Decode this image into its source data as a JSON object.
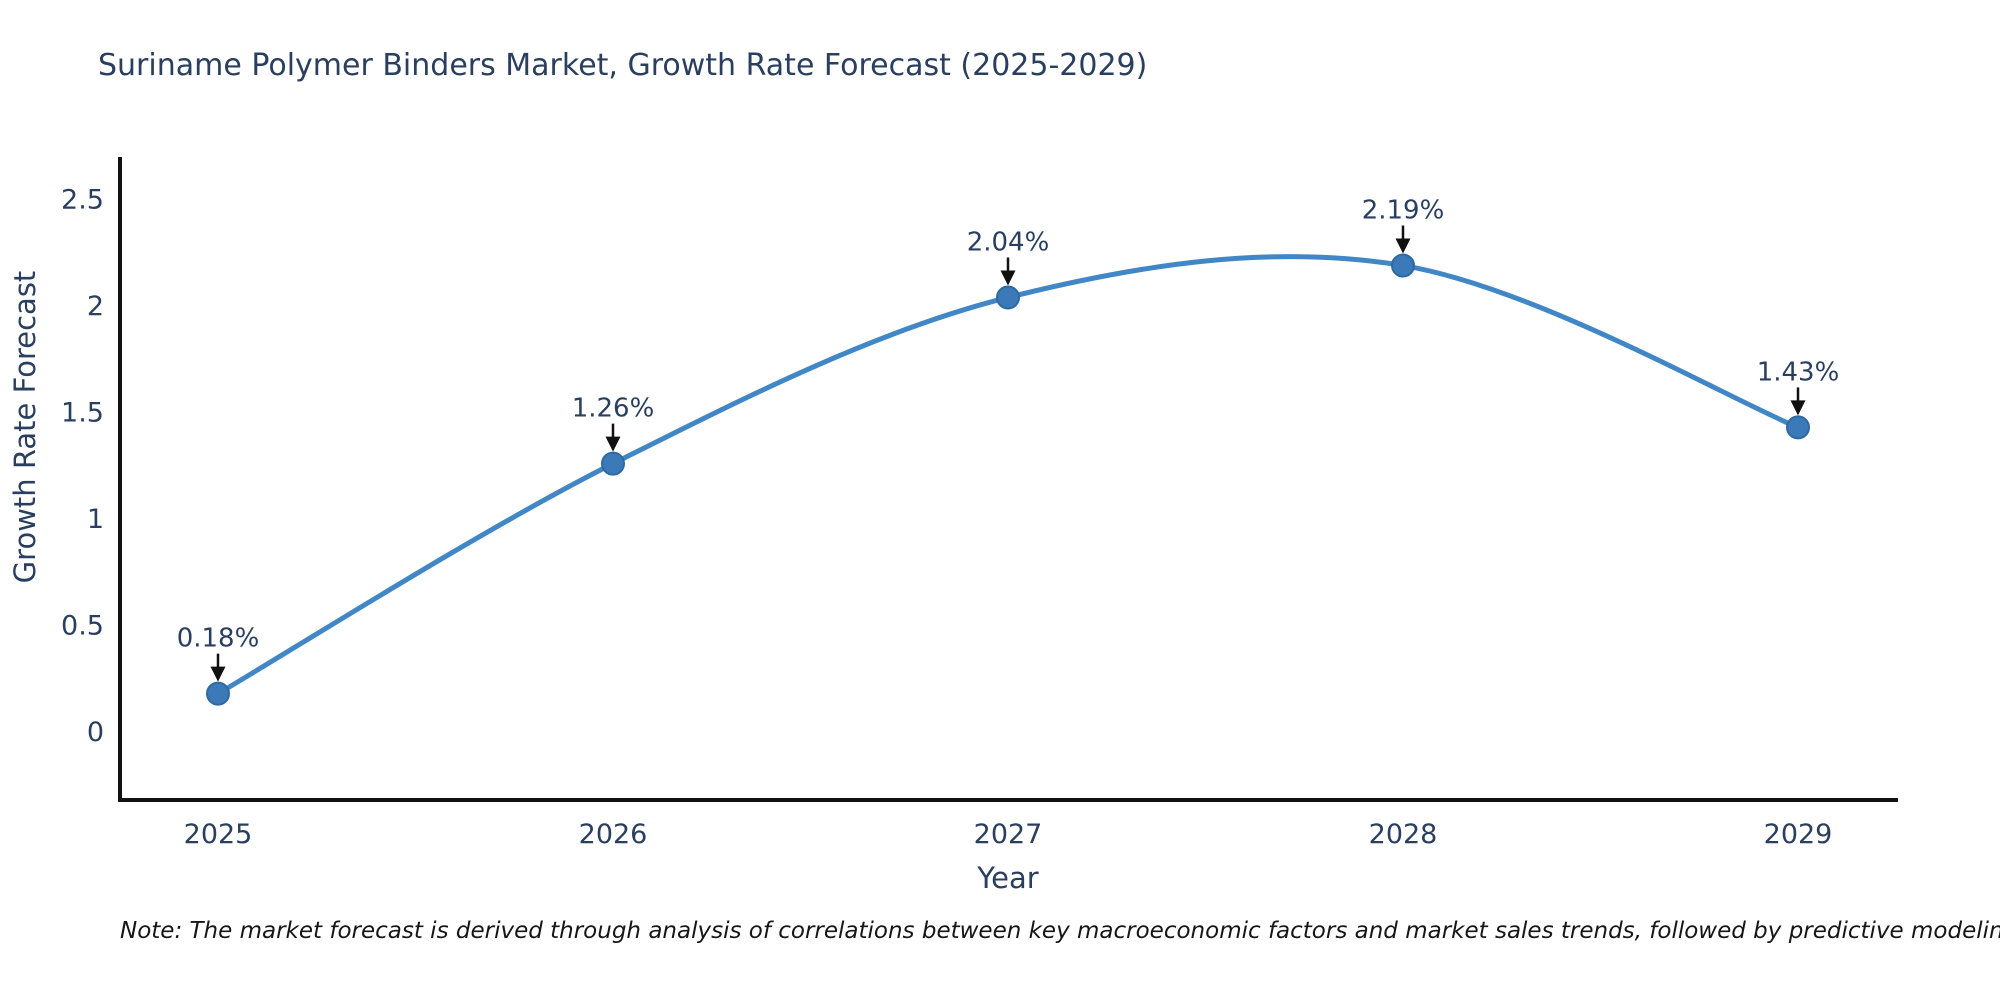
{
  "title": "Suriname Polymer Binders Market, Growth Rate Forecast (2025-2029)",
  "note": "Note: The market forecast is derived through analysis of correlations between key macroeconomic factors and market sales trends, followed by predictive modeling to project future sales",
  "chart_data": {
    "type": "line",
    "title": "Suriname Polymer Binders Market, Growth Rate Forecast (2025-2029)",
    "xlabel": "Year",
    "ylabel": "Growth Rate Forecast",
    "x": [
      2025,
      2026,
      2027,
      2028,
      2029
    ],
    "categories": [
      "2025",
      "2026",
      "2027",
      "2028",
      "2029"
    ],
    "series": [
      {
        "name": "Growth Rate Forecast",
        "values": [
          0.18,
          1.26,
          2.04,
          2.19,
          1.43
        ]
      }
    ],
    "point_labels": [
      "0.18%",
      "1.26%",
      "2.04%",
      "2.19%",
      "1.43%"
    ],
    "yticks": [
      0,
      0.5,
      1,
      1.5,
      2,
      2.5
    ],
    "ylim": [
      -0.32,
      2.7
    ],
    "grid": false,
    "legend_position": "none",
    "line_shape": "spline",
    "colors": {
      "line": "#4186c5",
      "marker": "#3c79b8",
      "marker_edge": "#2d6aa3",
      "axis": "#111111",
      "tick_text": "#2a3f5f",
      "annotation_text": "#2a3f5f",
      "annotation_arrow": "#111111",
      "background": "#ffffff"
    }
  }
}
